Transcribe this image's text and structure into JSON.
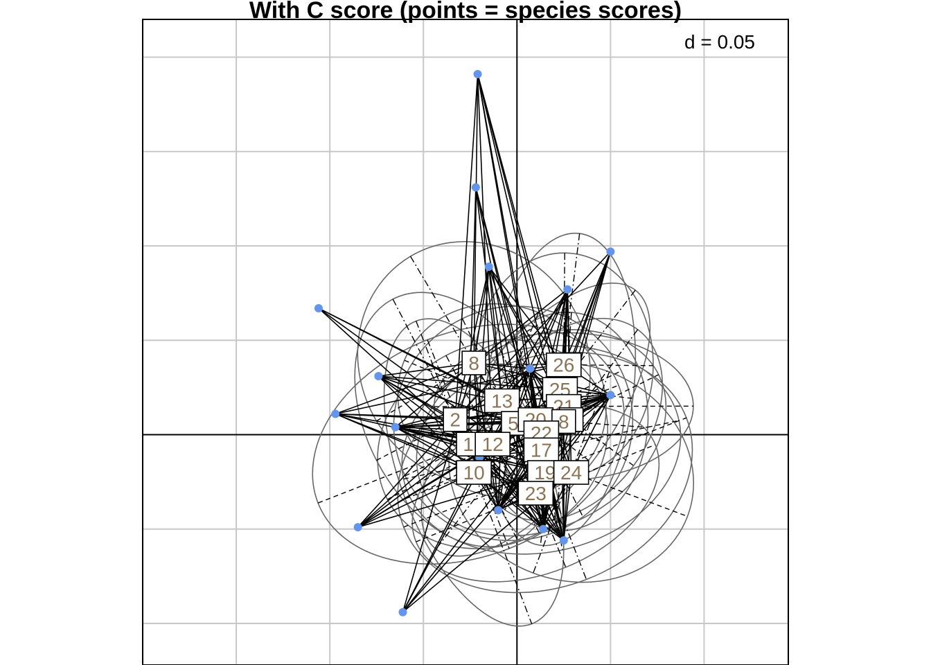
{
  "chart_data": {
    "type": "scatter",
    "title": "With C score (points = species scores)",
    "d_label": "d = 0.05",
    "grid": true,
    "xlim": [
      -0.2,
      0.145
    ],
    "ylim": [
      -0.122,
      0.22
    ],
    "grid_step": 0.05,
    "colors": {
      "points": "#6495ed",
      "label_text": "#8b7355",
      "links": "#000000",
      "ellipses": "#666666",
      "grid": "#c8c8c8"
    },
    "species_points": [
      {
        "x": -0.021,
        "y": 0.191
      },
      {
        "x": -0.022,
        "y": 0.131
      },
      {
        "x": -0.015,
        "y": 0.089
      },
      {
        "x": 0.05,
        "y": 0.097
      },
      {
        "x": 0.027,
        "y": 0.077
      },
      {
        "x": -0.106,
        "y": 0.067
      },
      {
        "x": -0.074,
        "y": 0.031
      },
      {
        "x": -0.097,
        "y": 0.011
      },
      {
        "x": -0.065,
        "y": 0.004
      },
      {
        "x": 0.007,
        "y": 0.035
      },
      {
        "x": 0.05,
        "y": 0.021
      },
      {
        "x": -0.02,
        "y": -0.012
      },
      {
        "x": -0.01,
        "y": -0.04
      },
      {
        "x": -0.085,
        "y": -0.049
      },
      {
        "x": 0.014,
        "y": -0.05
      },
      {
        "x": 0.025,
        "y": -0.056
      },
      {
        "x": -0.061,
        "y": -0.094
      }
    ],
    "site_labels": [
      {
        "label": "8",
        "x": -0.023,
        "y": 0.038
      },
      {
        "label": "26",
        "x": 0.025,
        "y": 0.037
      },
      {
        "label": "25",
        "x": 0.023,
        "y": 0.024
      },
      {
        "label": "13",
        "x": -0.008,
        "y": 0.018
      },
      {
        "label": "21",
        "x": 0.025,
        "y": 0.015
      },
      {
        "label": "2",
        "x": -0.033,
        "y": 0.008
      },
      {
        "label": "5",
        "x": -0.002,
        "y": 0.006
      },
      {
        "label": "20",
        "x": 0.01,
        "y": 0.008
      },
      {
        "label": "4",
        "x": 0.029,
        "y": 0.008
      },
      {
        "label": "8",
        "x": 0.025,
        "y": 0.007
      },
      {
        "label": "22",
        "x": 0.013,
        "y": 0.001
      },
      {
        "label": "1",
        "x": -0.026,
        "y": -0.005
      },
      {
        "label": "12",
        "x": -0.013,
        "y": -0.005
      },
      {
        "label": "17",
        "x": 0.013,
        "y": -0.008
      },
      {
        "label": "10",
        "x": -0.023,
        "y": -0.02
      },
      {
        "label": "19",
        "x": 0.015,
        "y": -0.02
      },
      {
        "label": "24",
        "x": 0.029,
        "y": -0.02
      },
      {
        "label": "23",
        "x": 0.01,
        "y": -0.031
      }
    ]
  }
}
